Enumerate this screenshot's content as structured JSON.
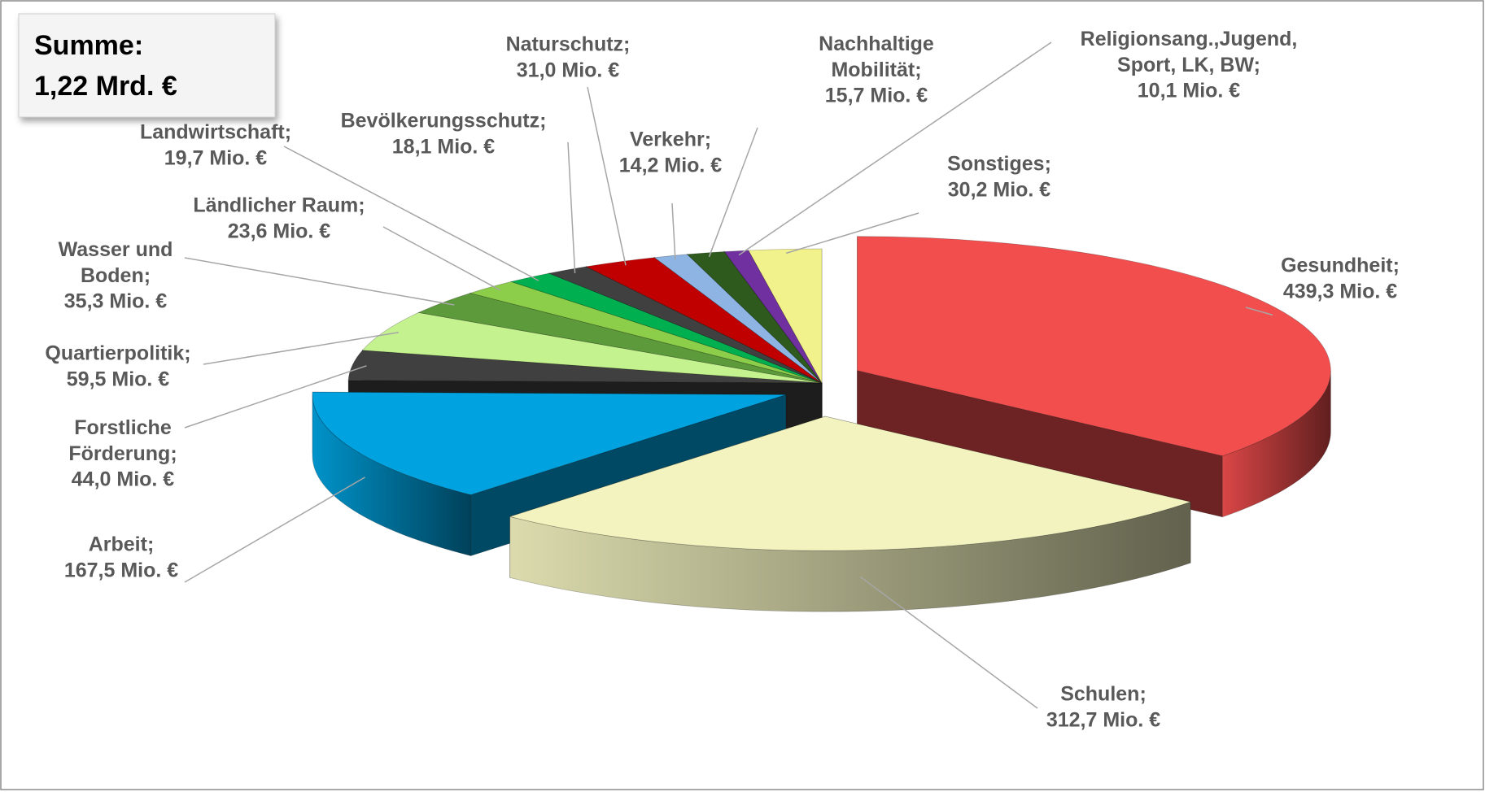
{
  "chart_data": {
    "type": "pie3d",
    "title": [
      "Summe:",
      "1,22 Mrd. €"
    ],
    "categories": [
      "Gesundheit;",
      "Schulen;",
      "Arbeit;",
      "Forstliche Förderung;",
      "Quartierpolitik;",
      "Wasser und Boden;",
      "Ländlicher Raum;",
      "Landwirtschaft;",
      "Bevölkerungsschutz;",
      "Naturschutz;",
      "Verkehr;",
      "Nachhaltige Mobilität;",
      "Religionsang.,Jugend, Sport, LK, BW;",
      "Sonstiges;"
    ],
    "values": [
      439.3,
      312.7,
      167.5,
      44.0,
      59.5,
      35.3,
      23.6,
      19.7,
      18.1,
      31.0,
      14.2,
      15.7,
      10.1,
      30.2
    ],
    "value_labels": [
      "439,3 Mio. €",
      "312,7 Mio. €",
      "167,5 Mio. €",
      "44,0 Mio. €",
      "59,5 Mio. €",
      "35,3 Mio. €",
      "23,6 Mio. €",
      "19,7 Mio. €",
      "18,1 Mio. €",
      "31,0 Mio. €",
      "14,2 Mio. €",
      "15,7 Mio. €",
      "10,1 Mio. €",
      "30,2 Mio. €"
    ],
    "colors": [
      "#f24e4e",
      "#f3f3c0",
      "#00a3e0",
      "#404040",
      "#c4f28f",
      "#5c9a3c",
      "#8ccd4a",
      "#00b050",
      "#404040",
      "#c00000",
      "#8db4e2",
      "#2e5a1e",
      "#7030a0",
      "#f2f28c"
    ]
  }
}
